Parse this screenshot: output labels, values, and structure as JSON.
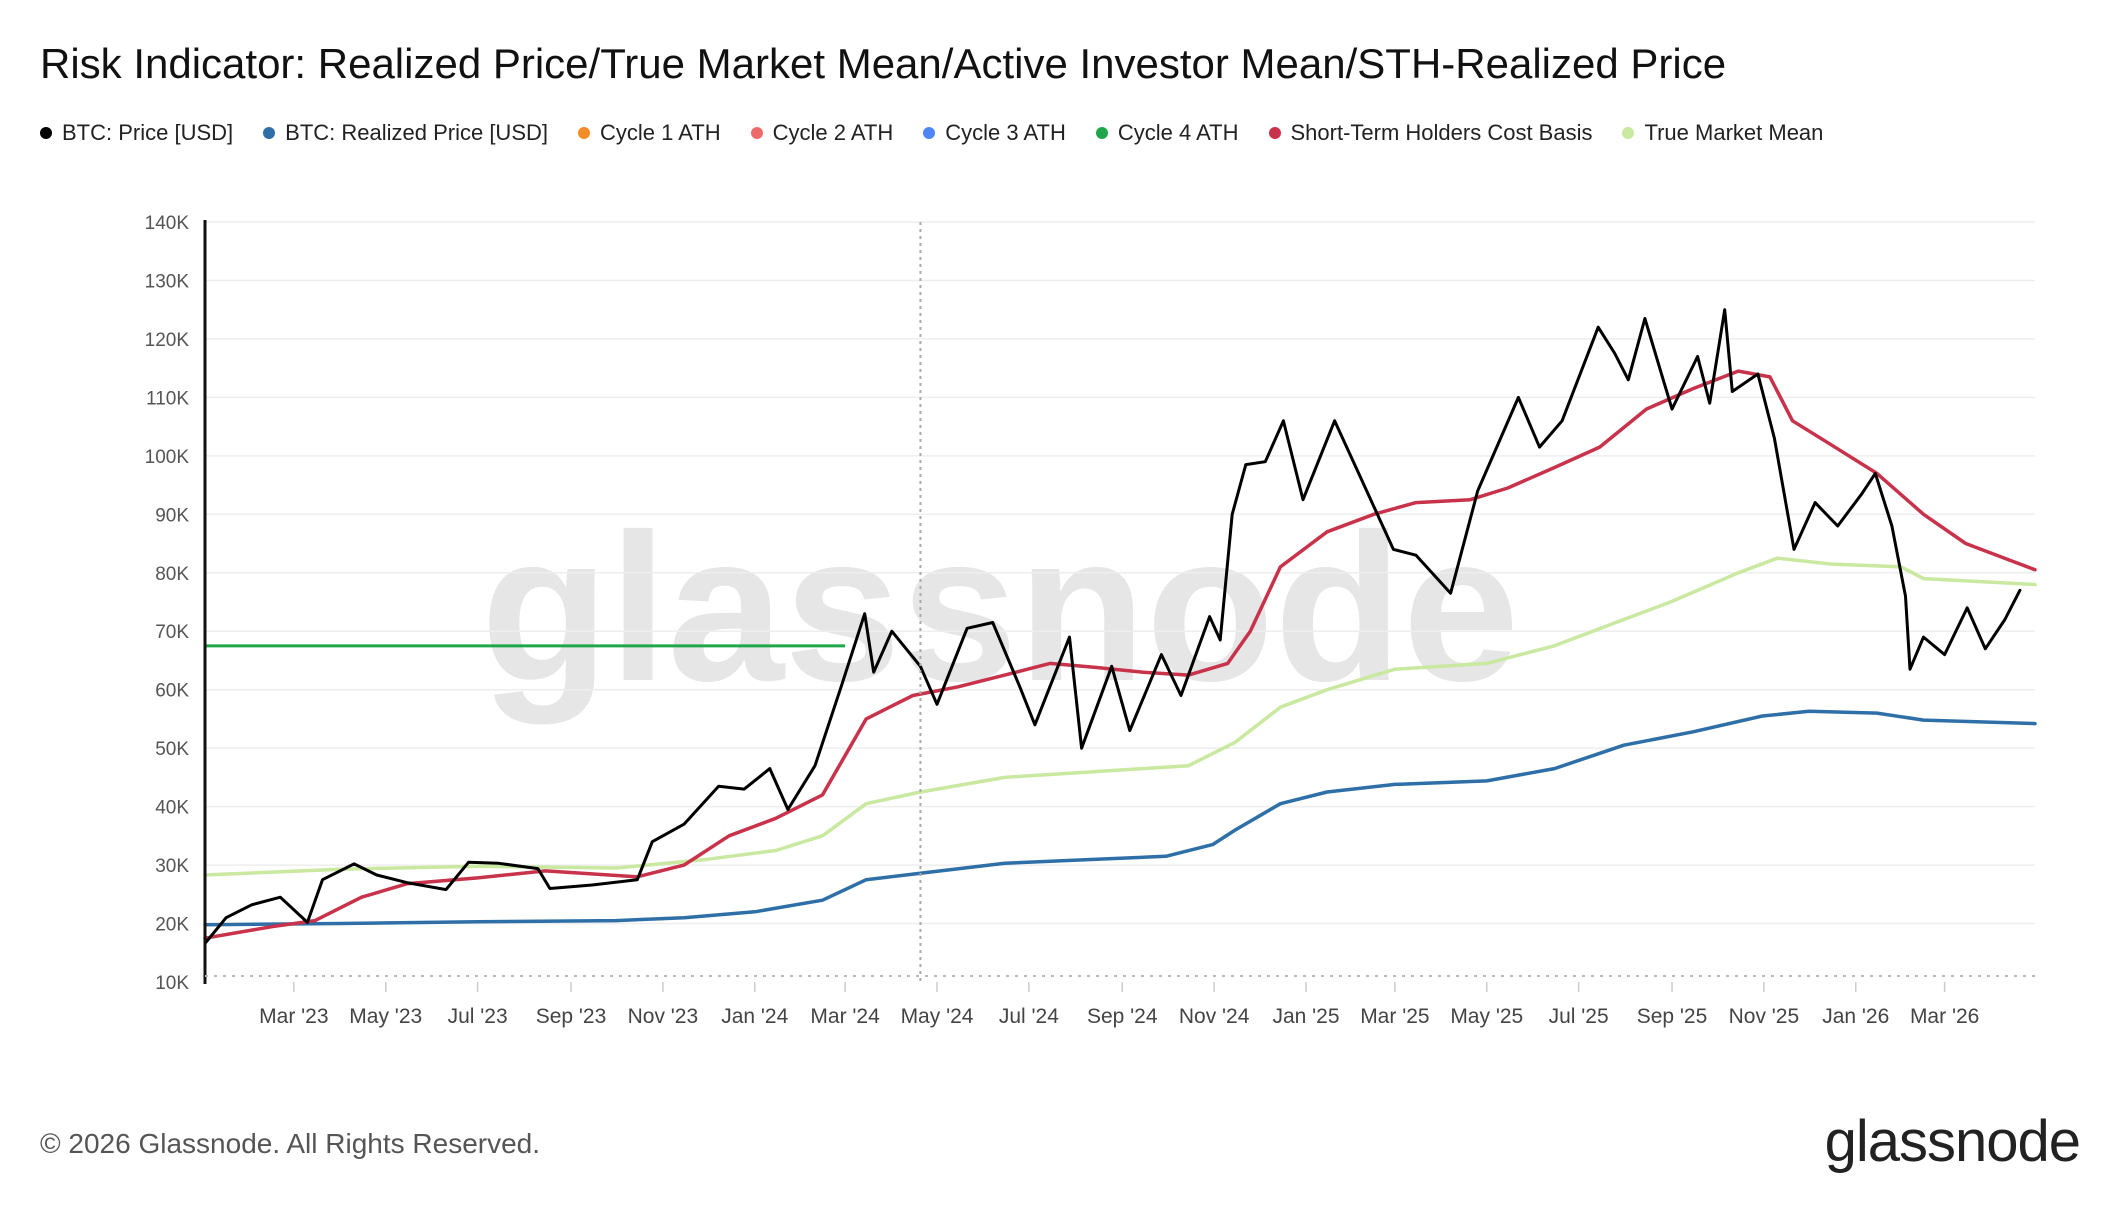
{
  "title": "Risk Indicator: Realized Price/True Market Mean/Active Investor Mean/STH-Realized Price",
  "legend": [
    {
      "label": "BTC: Price [USD]",
      "color": "#000000"
    },
    {
      "label": "BTC: Realized Price [USD]",
      "color": "#2e6fa7"
    },
    {
      "label": "Cycle 1 ATH",
      "color": "#f28c28"
    },
    {
      "label": "Cycle 2 ATH",
      "color": "#ee6a6a"
    },
    {
      "label": "Cycle 3 ATH",
      "color": "#4f86f7"
    },
    {
      "label": "Cycle 4 ATH",
      "color": "#1fa64a"
    },
    {
      "label": "Short-Term Holders Cost Basis",
      "color": "#c8324a"
    },
    {
      "label": "True Market Mean",
      "color": "#c9e8a0"
    }
  ],
  "watermark": "glassnode",
  "footer": {
    "copyright": "© 2026 Glassnode. All Rights Reserved.",
    "brand": "glassnode"
  },
  "chart_data": {
    "type": "line",
    "ylim": [
      10000,
      140000
    ],
    "y_ticks": [
      10000,
      20000,
      30000,
      40000,
      50000,
      60000,
      70000,
      80000,
      90000,
      100000,
      110000,
      120000,
      130000,
      140000
    ],
    "y_tick_labels": [
      "10K",
      "20K",
      "30K",
      "40K",
      "50K",
      "60K",
      "70K",
      "80K",
      "90K",
      "100K",
      "110K",
      "120K",
      "130K",
      "140K"
    ],
    "x_range": [
      "2023-01-01",
      "2026-04-30"
    ],
    "x_ticks": [
      {
        "date": "2023-03-01",
        "label": "Mar '23"
      },
      {
        "date": "2023-05-01",
        "label": "May '23"
      },
      {
        "date": "2023-07-01",
        "label": "Jul '23"
      },
      {
        "date": "2023-09-01",
        "label": "Sep '23"
      },
      {
        "date": "2023-11-01",
        "label": "Nov '23"
      },
      {
        "date": "2024-01-01",
        "label": "Jan '24"
      },
      {
        "date": "2024-03-01",
        "label": "Mar '24"
      },
      {
        "date": "2024-05-01",
        "label": "May '24"
      },
      {
        "date": "2024-07-01",
        "label": "Jul '24"
      },
      {
        "date": "2024-09-01",
        "label": "Sep '24"
      },
      {
        "date": "2024-11-01",
        "label": "Nov '24"
      },
      {
        "date": "2025-01-01",
        "label": "Jan '25"
      },
      {
        "date": "2025-03-01",
        "label": "Mar '25"
      },
      {
        "date": "2025-05-01",
        "label": "May '25"
      },
      {
        "date": "2025-07-01",
        "label": "Jul '25"
      },
      {
        "date": "2025-09-01",
        "label": "Sep '25"
      },
      {
        "date": "2025-11-01",
        "label": "Nov '25"
      },
      {
        "date": "2026-01-01",
        "label": "Jan '26"
      },
      {
        "date": "2026-03-01",
        "label": "Mar '26"
      }
    ],
    "vertical_marker_date": "2024-04-20",
    "series": [
      {
        "name": "BTC: Price [USD]",
        "color": "#000000",
        "points": [
          [
            "2023-01-01",
            16600
          ],
          [
            "2023-01-15",
            21000
          ],
          [
            "2023-02-01",
            23200
          ],
          [
            "2023-02-20",
            24500
          ],
          [
            "2023-03-10",
            20200
          ],
          [
            "2023-03-20",
            27500
          ],
          [
            "2023-04-10",
            30200
          ],
          [
            "2023-04-25",
            28300
          ],
          [
            "2023-05-15",
            27000
          ],
          [
            "2023-06-10",
            25800
          ],
          [
            "2023-06-25",
            30500
          ],
          [
            "2023-07-15",
            30300
          ],
          [
            "2023-08-10",
            29400
          ],
          [
            "2023-08-18",
            26000
          ],
          [
            "2023-09-15",
            26600
          ],
          [
            "2023-10-15",
            27500
          ],
          [
            "2023-10-25",
            34000
          ],
          [
            "2023-11-15",
            37000
          ],
          [
            "2023-12-08",
            43500
          ],
          [
            "2023-12-25",
            43000
          ],
          [
            "2024-01-11",
            46500
          ],
          [
            "2024-01-23",
            39500
          ],
          [
            "2024-02-10",
            47000
          ],
          [
            "2024-02-28",
            61000
          ],
          [
            "2024-03-14",
            73000
          ],
          [
            "2024-03-20",
            63000
          ],
          [
            "2024-04-01",
            70000
          ],
          [
            "2024-04-20",
            64000
          ],
          [
            "2024-05-01",
            57500
          ],
          [
            "2024-05-21",
            70500
          ],
          [
            "2024-06-07",
            71500
          ],
          [
            "2024-06-25",
            60500
          ],
          [
            "2024-07-05",
            54000
          ],
          [
            "2024-07-28",
            69000
          ],
          [
            "2024-08-05",
            50000
          ],
          [
            "2024-08-25",
            64000
          ],
          [
            "2024-09-06",
            53000
          ],
          [
            "2024-09-27",
            66000
          ],
          [
            "2024-10-10",
            59000
          ],
          [
            "2024-10-29",
            72500
          ],
          [
            "2024-11-05",
            68500
          ],
          [
            "2024-11-13",
            90000
          ],
          [
            "2024-11-22",
            98500
          ],
          [
            "2024-12-05",
            99000
          ],
          [
            "2024-12-17",
            106000
          ],
          [
            "2024-12-30",
            92500
          ],
          [
            "2025-01-20",
            106000
          ],
          [
            "2025-02-05",
            97000
          ],
          [
            "2025-02-28",
            84000
          ],
          [
            "2025-03-15",
            83000
          ],
          [
            "2025-04-07",
            76500
          ],
          [
            "2025-04-25",
            94000
          ],
          [
            "2025-05-22",
            110000
          ],
          [
            "2025-06-05",
            101500
          ],
          [
            "2025-06-20",
            106000
          ],
          [
            "2025-07-14",
            122000
          ],
          [
            "2025-07-25",
            117500
          ],
          [
            "2025-08-03",
            113000
          ],
          [
            "2025-08-14",
            123500
          ],
          [
            "2025-09-01",
            108000
          ],
          [
            "2025-09-18",
            117000
          ],
          [
            "2025-09-26",
            109000
          ],
          [
            "2025-10-06",
            125000
          ],
          [
            "2025-10-11",
            111000
          ],
          [
            "2025-10-28",
            114000
          ],
          [
            "2025-11-08",
            103000
          ],
          [
            "2025-11-21",
            84000
          ],
          [
            "2025-12-05",
            92000
          ],
          [
            "2025-12-20",
            88000
          ],
          [
            "2026-01-05",
            93500
          ],
          [
            "2026-01-14",
            97000
          ],
          [
            "2026-01-25",
            88000
          ],
          [
            "2026-02-03",
            76000
          ],
          [
            "2026-02-06",
            63500
          ],
          [
            "2026-02-15",
            69000
          ],
          [
            "2026-03-01",
            66000
          ],
          [
            "2026-03-16",
            74000
          ],
          [
            "2026-03-28",
            67000
          ],
          [
            "2026-04-10",
            72000
          ],
          [
            "2026-04-20",
            77000
          ]
        ]
      },
      {
        "name": "BTC: Realized Price [USD]",
        "color": "#2e6fa7",
        "points": [
          [
            "2023-01-01",
            19800
          ],
          [
            "2023-04-01",
            20000
          ],
          [
            "2023-07-01",
            20300
          ],
          [
            "2023-10-01",
            20500
          ],
          [
            "2023-11-15",
            21000
          ],
          [
            "2024-01-01",
            22000
          ],
          [
            "2024-02-15",
            24000
          ],
          [
            "2024-03-15",
            27500
          ],
          [
            "2024-04-20",
            28600
          ],
          [
            "2024-06-15",
            30300
          ],
          [
            "2024-08-15",
            31000
          ],
          [
            "2024-09-30",
            31500
          ],
          [
            "2024-10-31",
            33500
          ],
          [
            "2024-11-15",
            36000
          ],
          [
            "2024-12-15",
            40500
          ],
          [
            "2025-01-15",
            42500
          ],
          [
            "2025-03-01",
            43800
          ],
          [
            "2025-05-01",
            44400
          ],
          [
            "2025-06-15",
            46500
          ],
          [
            "2025-07-31",
            50500
          ],
          [
            "2025-09-15",
            52800
          ],
          [
            "2025-10-31",
            55500
          ],
          [
            "2025-12-01",
            56300
          ],
          [
            "2026-01-15",
            56000
          ],
          [
            "2026-02-15",
            54800
          ],
          [
            "2026-04-30",
            54200
          ]
        ]
      },
      {
        "name": "Short-Term Holders Cost Basis",
        "color": "#c8324a",
        "points": [
          [
            "2023-01-01",
            17500
          ],
          [
            "2023-02-15",
            19500
          ],
          [
            "2023-03-15",
            20500
          ],
          [
            "2023-04-15",
            24500
          ],
          [
            "2023-05-15",
            26800
          ],
          [
            "2023-07-01",
            27800
          ],
          [
            "2023-08-15",
            29000
          ],
          [
            "2023-10-15",
            28000
          ],
          [
            "2023-11-15",
            30000
          ],
          [
            "2023-12-15",
            35000
          ],
          [
            "2024-01-15",
            38000
          ],
          [
            "2024-02-15",
            42000
          ],
          [
            "2024-03-15",
            55000
          ],
          [
            "2024-04-15",
            59000
          ],
          [
            "2024-05-15",
            60500
          ],
          [
            "2024-06-15",
            62500
          ],
          [
            "2024-07-15",
            64500
          ],
          [
            "2024-08-15",
            63800
          ],
          [
            "2024-09-15",
            63000
          ],
          [
            "2024-10-15",
            62500
          ],
          [
            "2024-11-10",
            64500
          ],
          [
            "2024-11-25",
            70000
          ],
          [
            "2024-12-15",
            81000
          ],
          [
            "2025-01-15",
            87000
          ],
          [
            "2025-02-15",
            90000
          ],
          [
            "2025-03-15",
            92000
          ],
          [
            "2025-04-20",
            92500
          ],
          [
            "2025-05-15",
            94500
          ],
          [
            "2025-06-15",
            98000
          ],
          [
            "2025-07-15",
            101500
          ],
          [
            "2025-08-15",
            108000
          ],
          [
            "2025-09-15",
            111500
          ],
          [
            "2025-10-15",
            114500
          ],
          [
            "2025-11-05",
            113500
          ],
          [
            "2025-11-20",
            106000
          ],
          [
            "2025-12-15",
            102000
          ],
          [
            "2026-01-15",
            97000
          ],
          [
            "2026-02-15",
            90000
          ],
          [
            "2026-03-15",
            85000
          ],
          [
            "2026-04-30",
            80500
          ]
        ]
      },
      {
        "name": "True Market Mean",
        "color": "#c9e8a0",
        "points": [
          [
            "2023-01-01",
            28300
          ],
          [
            "2023-04-01",
            29300
          ],
          [
            "2023-07-01",
            29800
          ],
          [
            "2023-10-01",
            29500
          ],
          [
            "2023-12-01",
            31000
          ],
          [
            "2024-01-15",
            32500
          ],
          [
            "2024-02-15",
            35000
          ],
          [
            "2024-03-15",
            40500
          ],
          [
            "2024-04-20",
            42500
          ],
          [
            "2024-06-15",
            45000
          ],
          [
            "2024-08-15",
            46000
          ],
          [
            "2024-10-15",
            47000
          ],
          [
            "2024-11-15",
            51000
          ],
          [
            "2024-12-15",
            57000
          ],
          [
            "2025-01-15",
            60000
          ],
          [
            "2025-03-01",
            63500
          ],
          [
            "2025-05-01",
            64500
          ],
          [
            "2025-06-15",
            67500
          ],
          [
            "2025-07-31",
            72000
          ],
          [
            "2025-08-31",
            75000
          ],
          [
            "2025-10-15",
            80000
          ],
          [
            "2025-11-10",
            82500
          ],
          [
            "2025-12-15",
            81500
          ],
          [
            "2026-01-31",
            81000
          ],
          [
            "2026-02-15",
            79000
          ],
          [
            "2026-04-30",
            78000
          ]
        ]
      }
    ],
    "horizontal_lines": [
      {
        "name": "Cycle 4 ATH",
        "color": "#1fa64a",
        "value": 67500,
        "x_start": "2023-01-01",
        "x_end": "2024-03-01"
      }
    ]
  }
}
